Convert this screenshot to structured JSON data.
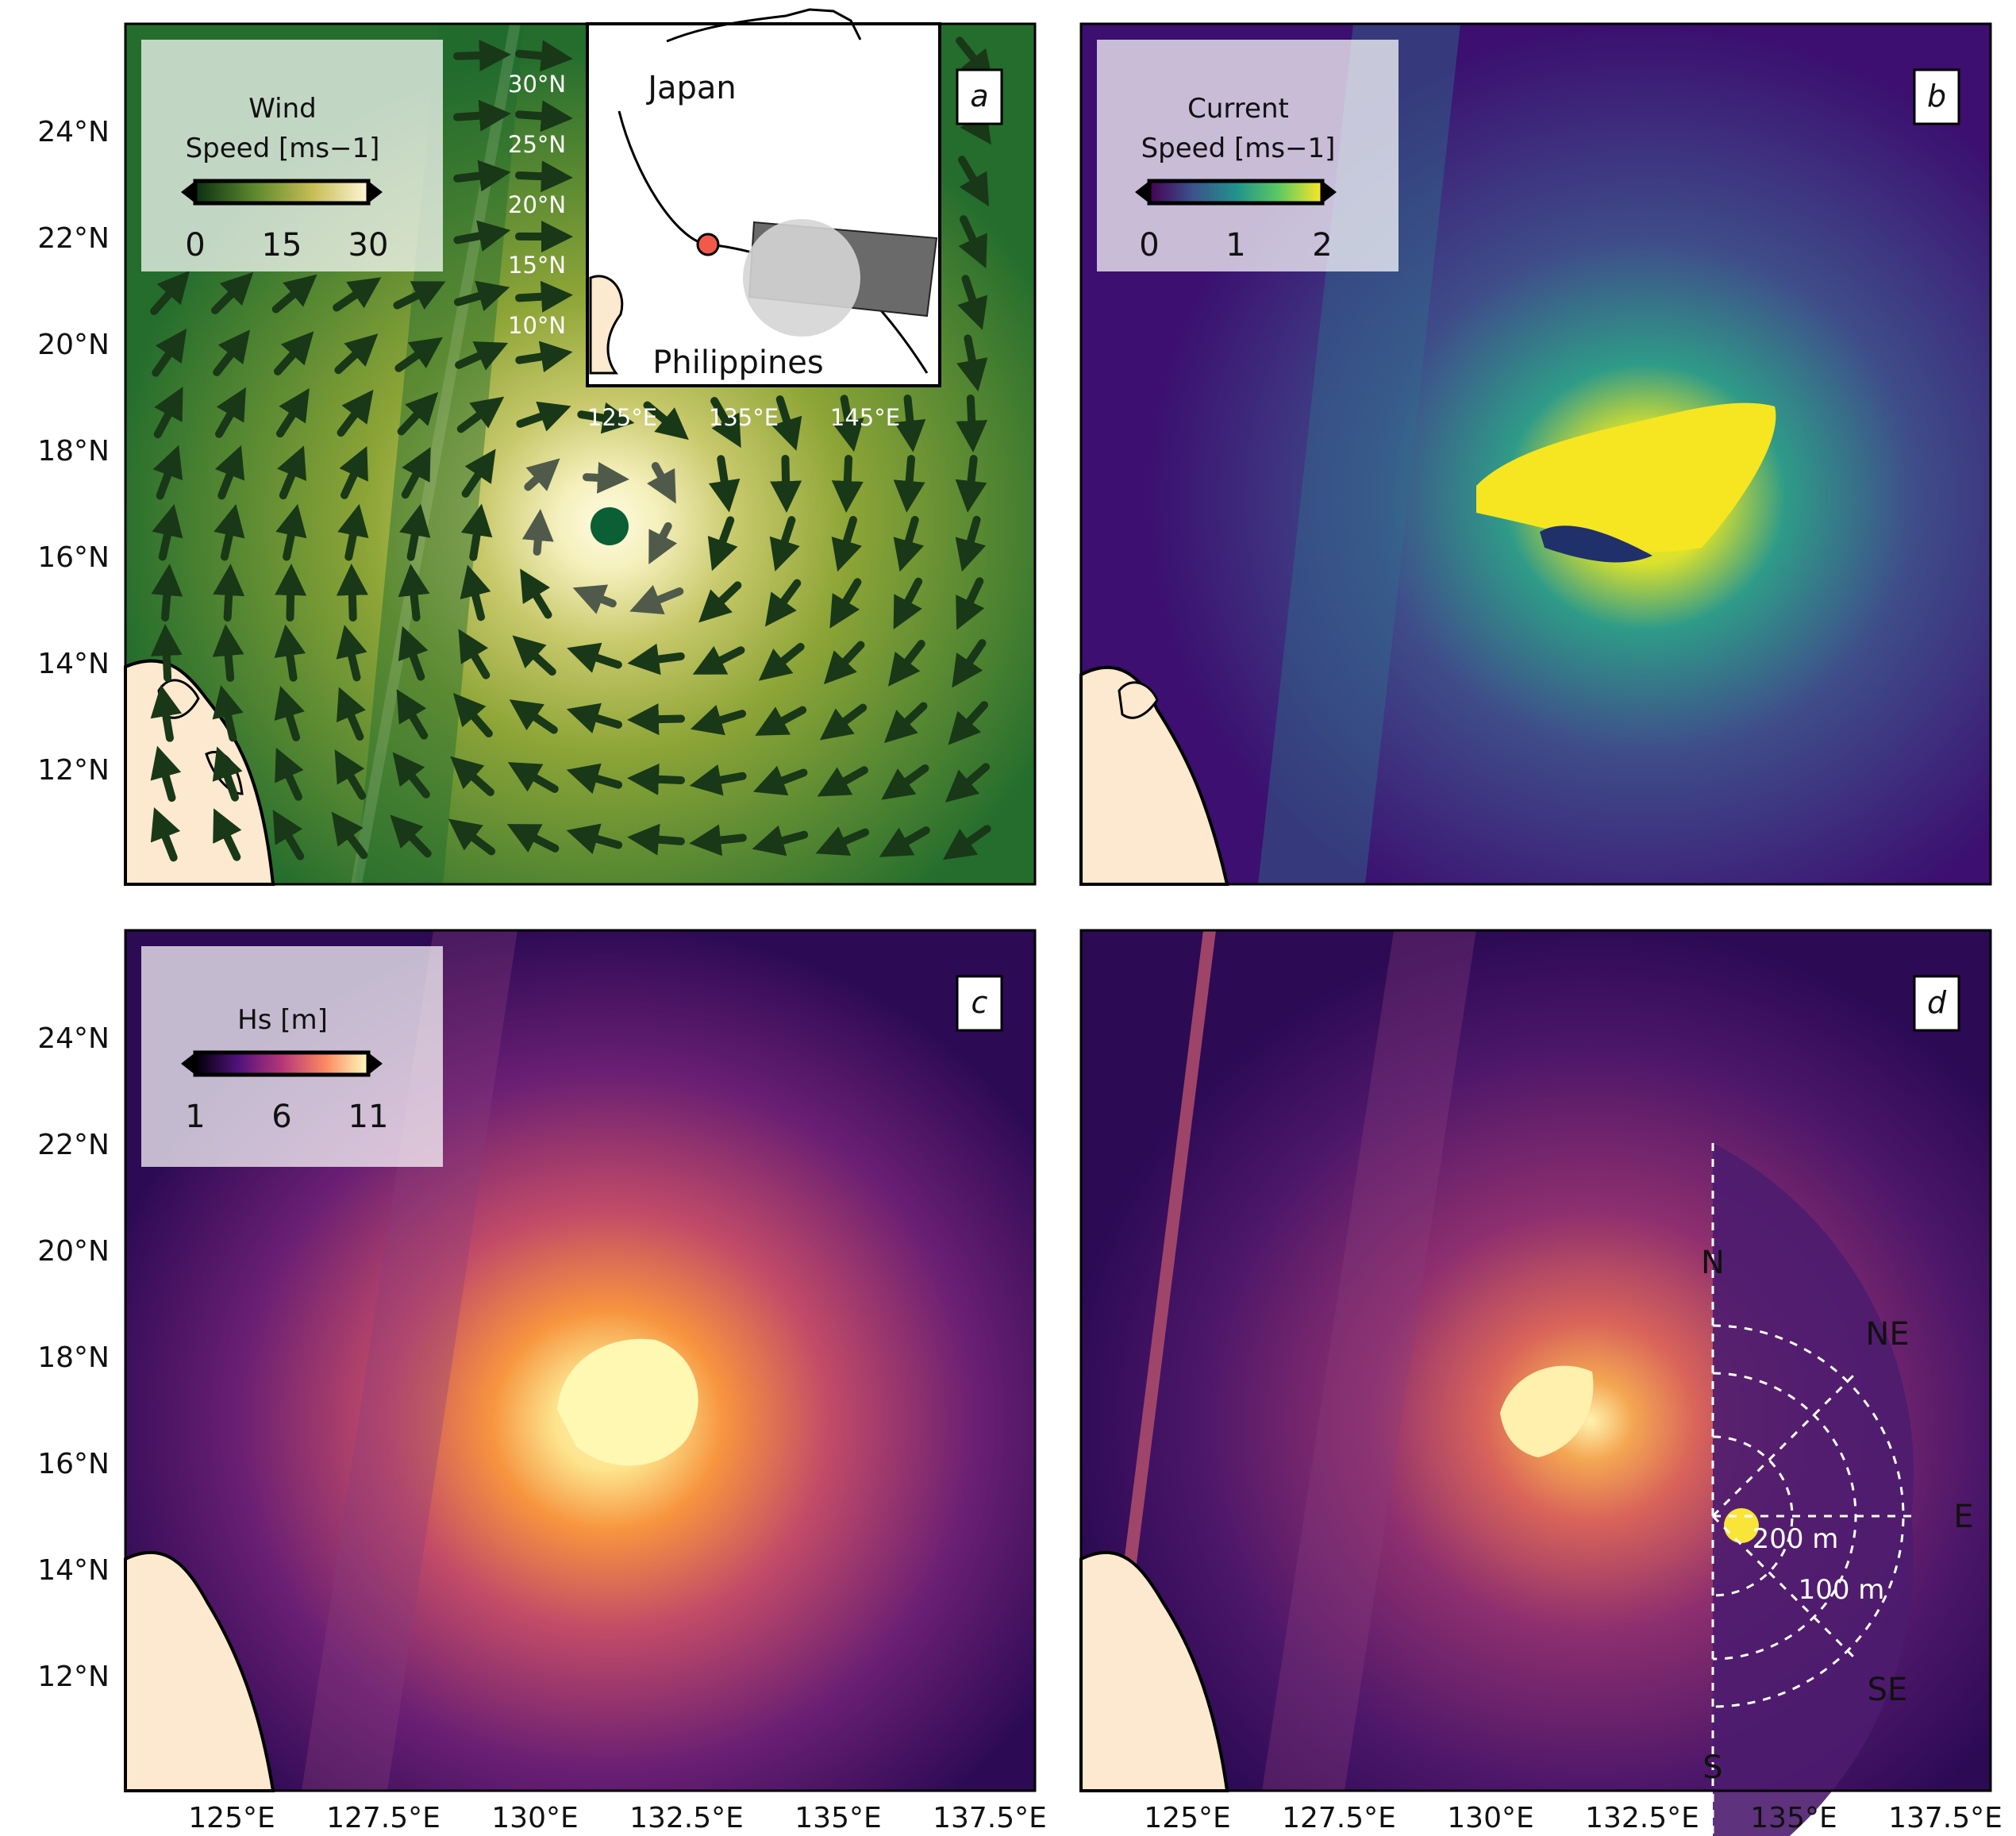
{
  "axes": {
    "lat_labels": [
      "24°N",
      "22°N",
      "20°N",
      "18°N",
      "16°N",
      "14°N",
      "12°N"
    ],
    "lon_labels": [
      "125°E",
      "127.5°E",
      "130°E",
      "132.5°E",
      "135°E",
      "137.5°E"
    ]
  },
  "panels": {
    "a": {
      "letter": "a",
      "legend": {
        "title_lines": [
          "Wind",
          "Speed [ms−1]"
        ],
        "ticks": [
          "0",
          "15",
          "30"
        ]
      },
      "inset": {
        "lat_labels": [
          "30°N",
          "25°N",
          "20°N",
          "15°N",
          "10°N"
        ],
        "lon_labels": [
          "125°E",
          "135°E",
          "145°E"
        ],
        "places": {
          "japan": "Japan",
          "philippines": "Philippines"
        }
      }
    },
    "b": {
      "letter": "b",
      "legend": {
        "title_lines": [
          "Current",
          "Speed [ms−1]"
        ],
        "ticks": [
          "0",
          "1",
          "2"
        ]
      }
    },
    "c": {
      "letter": "c",
      "legend": {
        "title_lines": [
          "Hs [m]"
        ],
        "ticks": [
          "1",
          "6",
          "11"
        ]
      }
    },
    "d": {
      "letter": "d",
      "polar": {
        "directions": [
          "N",
          "NE",
          "E",
          "SE",
          "S"
        ],
        "ranges": [
          "200 m",
          "100 m"
        ]
      }
    }
  },
  "colors": {
    "land": "#fde9cf",
    "wind_low": "#1f5d2b",
    "wind_mid": "#8fb52e",
    "wind_high": "#fff8d8",
    "current_low": "#3b0f70",
    "current_mid": "#21918c",
    "current_high": "#fde725",
    "hs_low": "#2c0a54",
    "hs_mid": "#b63679",
    "hs_high": "#fcfdbf"
  }
}
